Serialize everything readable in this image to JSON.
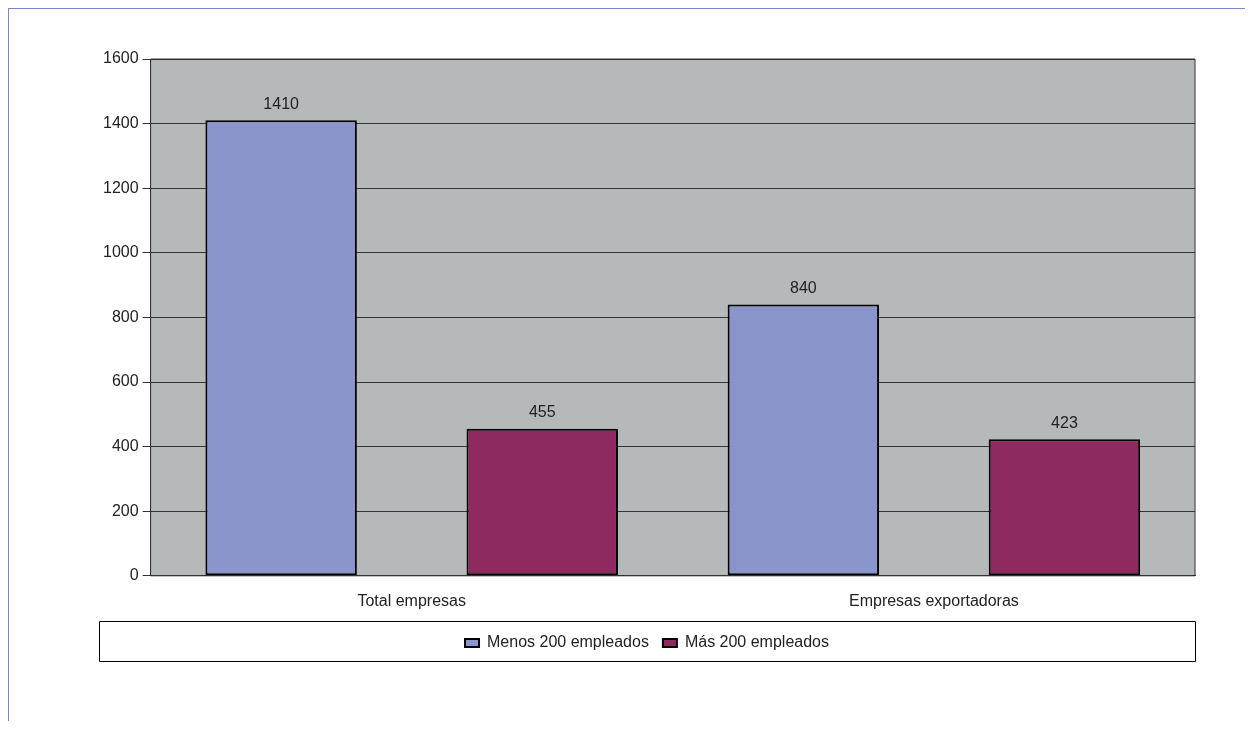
{
  "chart_data": {
    "type": "bar",
    "categories": [
      "Total empresas",
      "Empresas exportadoras"
    ],
    "series": [
      {
        "name": "Menos 200 empleados",
        "color": "#8a96cb",
        "values": [
          1410,
          840
        ]
      },
      {
        "name": "Más 200 empleados",
        "color": "#8e2a60",
        "values": [
          455,
          423
        ]
      }
    ],
    "ylim": [
      0,
      1600
    ],
    "yticks": [
      0,
      200,
      400,
      600,
      800,
      1000,
      1200,
      1400,
      1600
    ],
    "grid": "y",
    "legend": "bottom",
    "data_labels": true
  }
}
